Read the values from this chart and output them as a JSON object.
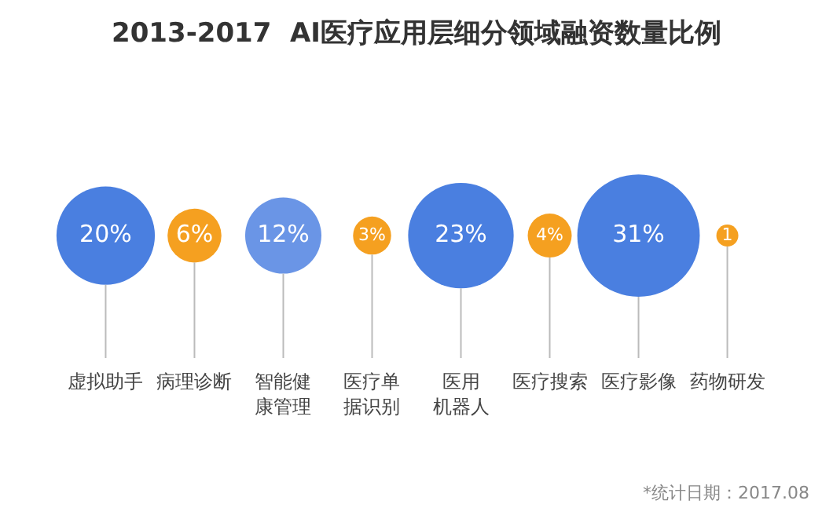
{
  "chart_data": {
    "type": "other",
    "title": "2013-2017  AI医疗应用层细分领域融资数量比例",
    "categories": [
      "虚拟助手",
      "病理诊断",
      "智能健康管理",
      "医疗单据识别",
      "医用机器人",
      "医疗搜索",
      "医疗影像",
      "药物研发"
    ],
    "values": [
      20,
      6,
      12,
      3,
      23,
      4,
      31,
      1
    ],
    "colors": [
      "#4a7fe0",
      "#f5a020",
      "#6a95e6",
      "#f5a020",
      "#4a7fe0",
      "#f5a020",
      "#4a7fe0",
      "#f5a020"
    ],
    "value_labels": [
      "20%",
      "6%",
      "12%",
      "3%",
      "23%",
      "4%",
      "31%",
      "1"
    ],
    "annotations": [
      "*统计日期：2017.08"
    ]
  }
}
